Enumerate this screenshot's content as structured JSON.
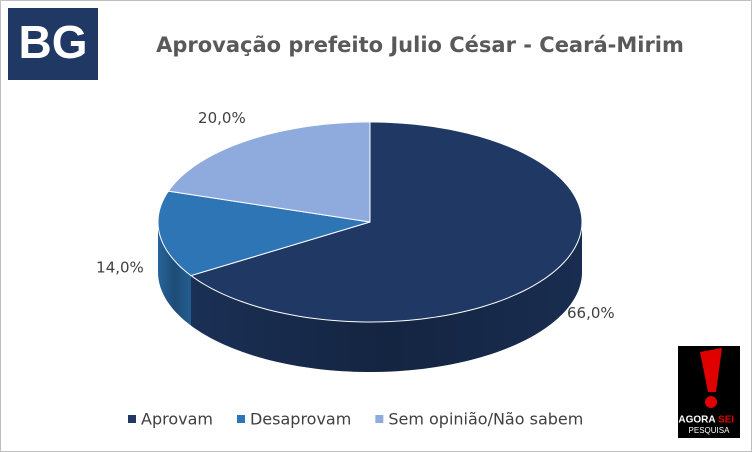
{
  "chart_data": {
    "type": "pie",
    "title": "Aprovação prefeito Julio César - Ceará-Mirim",
    "categories": [
      "Aprovam",
      "Desaprovam",
      "Sem opinião/Não sabem"
    ],
    "values": [
      66,
      14,
      20
    ],
    "value_labels": [
      "66,0%",
      "14,0%",
      "20,0%"
    ],
    "colors": [
      "#1f3864",
      "#2e75b6",
      "#8faadc"
    ],
    "legend": "bottom"
  },
  "logo_left": "BG",
  "logo_right": {
    "word1": "AGORA",
    "word2": "SEI",
    "sub": "PESQUISA"
  }
}
